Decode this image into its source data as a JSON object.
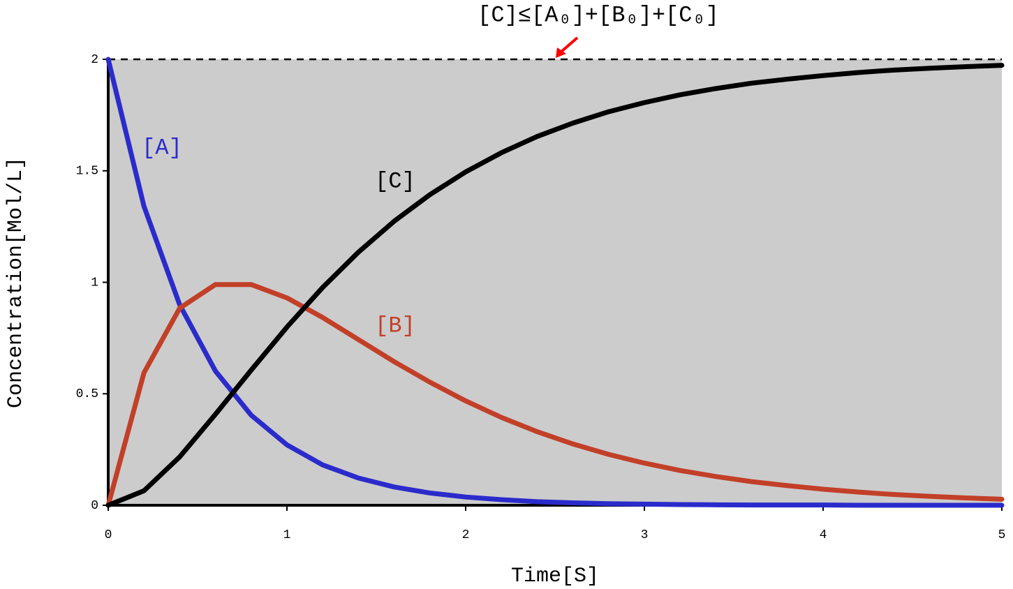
{
  "chart_data": {
    "type": "line",
    "annotation": "[C]≤[A₀]+[B₀]+[C₀]",
    "xlabel": "Time[S]",
    "ylabel": "Concentration[Mol/L]",
    "x": [
      0,
      0.2,
      0.4,
      0.6,
      0.8,
      1.0,
      1.2,
      1.4,
      1.6,
      1.8,
      2.0,
      2.2,
      2.4,
      2.6,
      2.8,
      3.0,
      3.2,
      3.4,
      3.6,
      3.8,
      4.0,
      4.2,
      4.4,
      4.6,
      4.8,
      5.0
    ],
    "series": [
      {
        "name": "[A]",
        "color": "#2b2bcc",
        "values": [
          2,
          1.341,
          0.899,
          0.602,
          0.404,
          0.271,
          0.181,
          0.122,
          0.082,
          0.055,
          0.037,
          0.025,
          0.016,
          0.011,
          0.007,
          0.005,
          0.003,
          0.002,
          0.001,
          0.001,
          0.001,
          0,
          0,
          0,
          0,
          0
        ]
      },
      {
        "name": "[B]",
        "color": "#c23f28",
        "values": [
          0,
          0.594,
          0.884,
          0.99,
          0.99,
          0.93,
          0.842,
          0.743,
          0.644,
          0.552,
          0.468,
          0.394,
          0.33,
          0.275,
          0.228,
          0.189,
          0.156,
          0.129,
          0.106,
          0.088,
          0.072,
          0.059,
          0.048,
          0.04,
          0.033,
          0.027
        ]
      },
      {
        "name": "[C]",
        "color": "#000000",
        "values": [
          0,
          0.065,
          0.217,
          0.408,
          0.606,
          0.799,
          0.977,
          1.135,
          1.274,
          1.393,
          1.495,
          1.581,
          1.654,
          1.714,
          1.765,
          1.806,
          1.841,
          1.869,
          1.893,
          1.911,
          1.927,
          1.941,
          1.952,
          1.96,
          1.967,
          1.973
        ]
      }
    ],
    "xlim": [
      0,
      5
    ],
    "ylim": [
      0,
      2
    ],
    "xticks": [
      0,
      1,
      2,
      3,
      4,
      5
    ],
    "yticks": [
      0,
      0.5,
      1,
      1.5,
      2
    ],
    "reference_line": 2,
    "plot_background": "#cccccc"
  }
}
